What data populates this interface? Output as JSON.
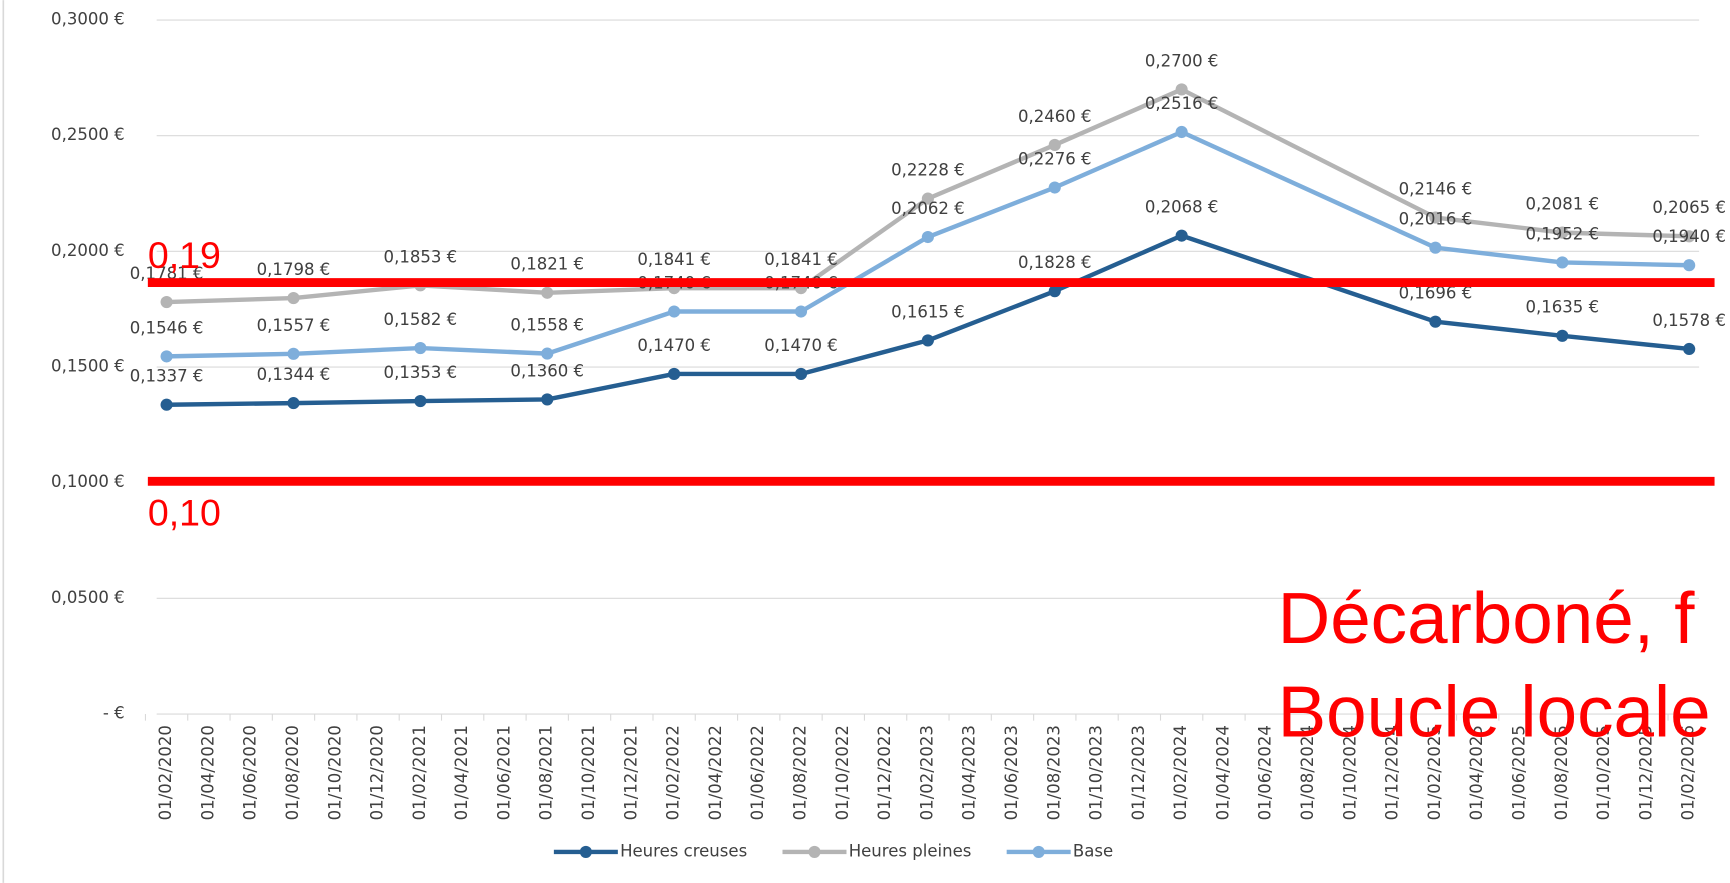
{
  "chart_data": {
    "type": "line",
    "categories": [
      "01/02/2020",
      "01/04/2020",
      "01/06/2020",
      "01/08/2020",
      "01/10/2020",
      "01/12/2020",
      "01/02/2021",
      "01/04/2021",
      "01/06/2021",
      "01/08/2021",
      "01/10/2021",
      "01/12/2021",
      "01/02/2022",
      "01/04/2022",
      "01/06/2022",
      "01/08/2022",
      "01/10/2022",
      "01/12/2022",
      "01/02/2023",
      "01/04/2023",
      "01/06/2023",
      "01/08/2023",
      "01/10/2023",
      "01/12/2023",
      "01/02/2024",
      "01/04/2024",
      "01/06/2024",
      "01/08/2024",
      "01/10/2024",
      "01/12/2024",
      "01/02/2025",
      "01/04/2025",
      "01/06/2025",
      "01/08/2025",
      "01/10/2025",
      "01/12/2025",
      "01/02/2026"
    ],
    "series": [
      {
        "name": "Heures creuses",
        "color": "#255e91",
        "x": [
          "01/02/2020",
          "01/08/2020",
          "01/02/2021",
          "01/08/2021",
          "01/02/2022",
          "01/08/2022",
          "01/02/2023",
          "01/08/2023",
          "01/02/2024",
          "01/02/2025",
          "01/08/2025",
          "01/02/2026"
        ],
        "values": [
          0.1337,
          0.1344,
          0.1353,
          0.136,
          0.147,
          0.147,
          0.1615,
          0.1828,
          0.2068,
          0.1696,
          0.1635,
          0.1578
        ],
        "value_labels": [
          "0,1337 €",
          "0,1344 €",
          "0,1353 €",
          "0,1360 €",
          "0,1470 €",
          "0,1470 €",
          "0,1615 €",
          "0,1828 €",
          "0,2068 €",
          "0,1696 €",
          "0,1635 €",
          "0,1578 €"
        ]
      },
      {
        "name": "Heures pleines",
        "color": "#b4b4b4",
        "x": [
          "01/02/2020",
          "01/08/2020",
          "01/02/2021",
          "01/08/2021",
          "01/02/2022",
          "01/08/2022",
          "01/02/2023",
          "01/08/2023",
          "01/02/2024",
          "01/02/2025",
          "01/08/2025",
          "01/02/2026"
        ],
        "values": [
          0.1781,
          0.1798,
          0.1853,
          0.1821,
          0.1841,
          0.1841,
          0.2228,
          0.246,
          0.27,
          0.2146,
          0.2081,
          0.2065
        ],
        "value_labels": [
          "0,1781 €",
          "0,1798 €",
          "0,1853 €",
          "0,1821 €",
          "0,1841 €",
          "0,1841 €",
          "0,2228 €",
          "0,2460 €",
          "0,2700 €",
          "0,2146 €",
          "0,2081 €",
          "0,2065 €"
        ]
      },
      {
        "name": "Base",
        "color": "#7eaedb",
        "x": [
          "01/02/2020",
          "01/08/2020",
          "01/02/2021",
          "01/08/2021",
          "01/02/2022",
          "01/08/2022",
          "01/02/2023",
          "01/08/2023",
          "01/02/2024",
          "01/02/2025",
          "01/08/2025",
          "01/02/2026"
        ],
        "values": [
          0.1546,
          0.1557,
          0.1582,
          0.1558,
          0.174,
          0.174,
          0.2062,
          0.2276,
          0.2516,
          0.2016,
          0.1952,
          0.194
        ],
        "value_labels": [
          "0,1546 €",
          "0,1557 €",
          "0,1582 €",
          "0,1558 €",
          "0,1740 €",
          "0,1740 €",
          "0,2062 €",
          "0,2276 €",
          "0,2516 €",
          "0,2016 €",
          "0,1952 €",
          "0,1940 €"
        ]
      }
    ],
    "ylim": [
      0,
      0.3
    ],
    "yticks": [
      {
        "value": 0,
        "label": "-  €"
      },
      {
        "value": 0.05,
        "label": "0,0500 €"
      },
      {
        "value": 0.1,
        "label": "0,1000 €"
      },
      {
        "value": 0.15,
        "label": "0,1500 €"
      },
      {
        "value": 0.2,
        "label": "0,2000 €"
      },
      {
        "value": 0.25,
        "label": "0,2500 €"
      },
      {
        "value": 0.3,
        "label": "0,3000 €"
      }
    ],
    "grid": true,
    "legend": "bottom",
    "reference_lines": [
      {
        "value": 0.1865,
        "label": "0,19",
        "color": "#ff0000"
      },
      {
        "value": 0.1006,
        "label": "0,10",
        "color": "#ff0000"
      }
    ],
    "annotations": [
      "Décarboné, f",
      "Boucle locale"
    ]
  }
}
